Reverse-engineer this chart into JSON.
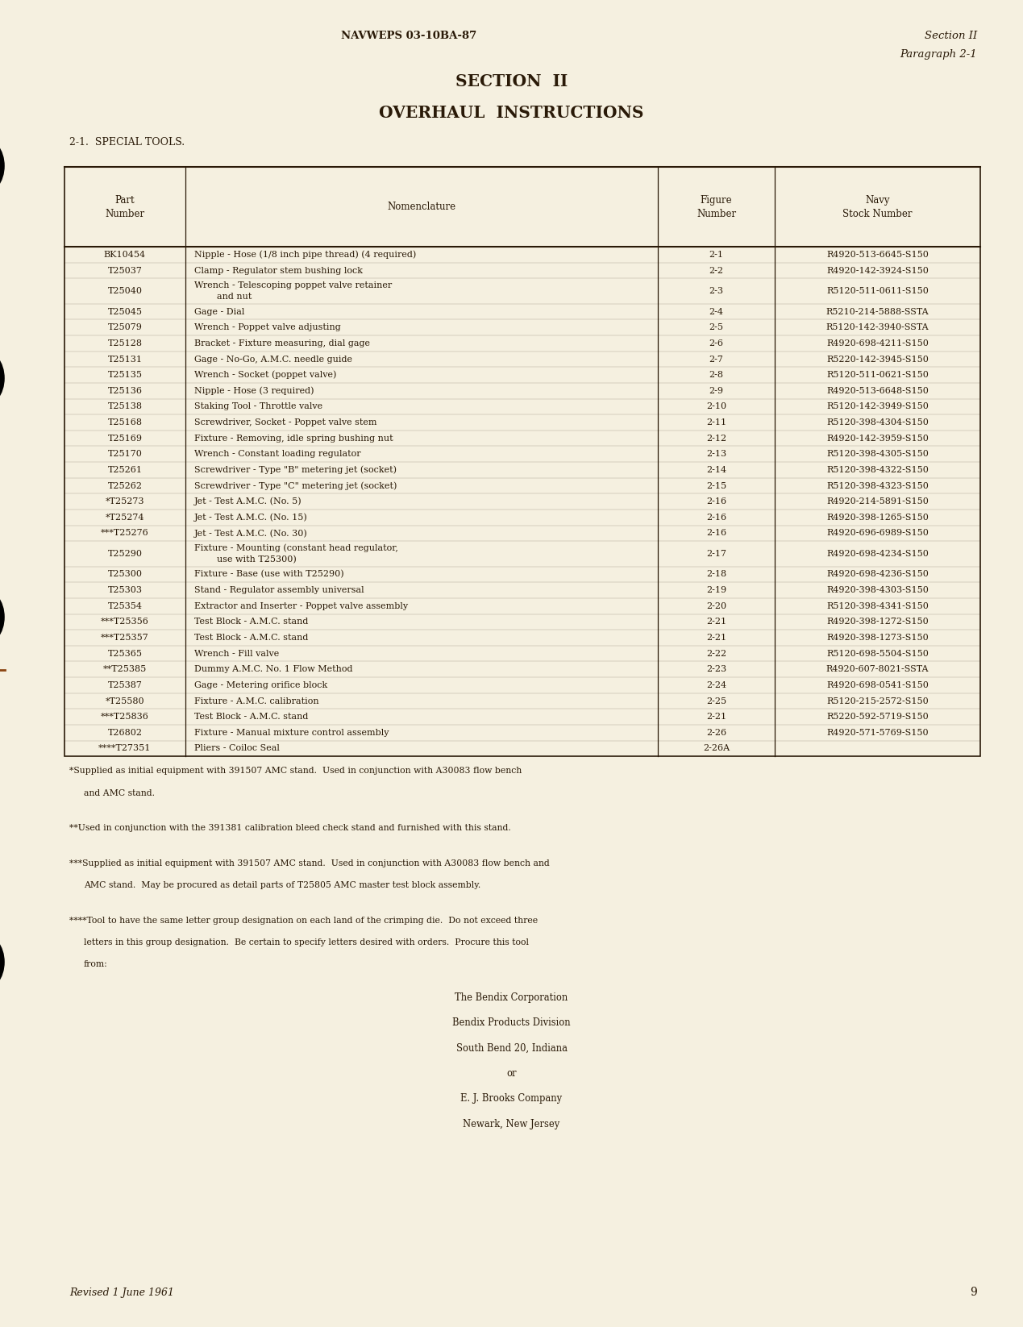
{
  "bg_color": "#f5f0e0",
  "text_color": "#2a1a08",
  "page_num": "9",
  "header_left": "NAVWEPS 03-10BA-87",
  "header_right_line1": "Section II",
  "header_right_line2": "Paragraph 2-1",
  "title_line1": "SECTION  II",
  "title_line2": "OVERHAUL  INSTRUCTIONS",
  "section_label": "2-1.  SPECIAL TOOLS.",
  "revised": "Revised 1 June 1961",
  "table_rows": [
    [
      "BK10454",
      "Nipple - Hose (1/8 inch pipe thread) (4 required)",
      "2-1",
      "R4920-513-6645-S150"
    ],
    [
      "T25037",
      "Clamp - Regulator stem bushing lock",
      "2-2",
      "R4920-142-3924-S150"
    ],
    [
      "T25040",
      "Wrench - Telescoping poppet valve retainer\nand nut",
      "2-3",
      "R5120-511-0611-S150"
    ],
    [
      "T25045",
      "Gage - Dial",
      "2-4",
      "R5210-214-5888-SSTA"
    ],
    [
      "T25079",
      "Wrench - Poppet valve adjusting",
      "2-5",
      "R5120-142-3940-SSTA"
    ],
    [
      "T25128",
      "Bracket - Fixture measuring, dial gage",
      "2-6",
      "R4920-698-4211-S150"
    ],
    [
      "T25131",
      "Gage - No-Go, A.M.C. needle guide",
      "2-7",
      "R5220-142-3945-S150"
    ],
    [
      "T25135",
      "Wrench - Socket (poppet valve)",
      "2-8",
      "R5120-511-0621-S150"
    ],
    [
      "T25136",
      "Nipple - Hose (3 required)",
      "2-9",
      "R4920-513-6648-S150"
    ],
    [
      "T25138",
      "Staking Tool - Throttle valve",
      "2-10",
      "R5120-142-3949-S150"
    ],
    [
      "T25168",
      "Screwdriver, Socket - Poppet valve stem",
      "2-11",
      "R5120-398-4304-S150"
    ],
    [
      "T25169",
      "Fixture - Removing, idle spring bushing nut",
      "2-12",
      "R4920-142-3959-S150"
    ],
    [
      "T25170",
      "Wrench - Constant loading regulator",
      "2-13",
      "R5120-398-4305-S150"
    ],
    [
      "T25261",
      "Screwdriver - Type \"B\" metering jet (socket)",
      "2-14",
      "R5120-398-4322-S150"
    ],
    [
      "T25262",
      "Screwdriver - Type \"C\" metering jet (socket)",
      "2-15",
      "R5120-398-4323-S150"
    ],
    [
      "*T25273",
      "Jet - Test A.M.C. (No. 5)",
      "2-16",
      "R4920-214-5891-S150"
    ],
    [
      "*T25274",
      "Jet - Test A.M.C. (No. 15)",
      "2-16",
      "R4920-398-1265-S150"
    ],
    [
      "***T25276",
      "Jet - Test A.M.C. (No. 30)",
      "2-16",
      "R4920-696-6989-S150"
    ],
    [
      "T25290",
      "Fixture - Mounting (constant head regulator,\nuse with T25300)",
      "2-17",
      "R4920-698-4234-S150"
    ],
    [
      "T25300",
      "Fixture - Base (use with T25290)",
      "2-18",
      "R4920-698-4236-S150"
    ],
    [
      "T25303",
      "Stand - Regulator assembly universal",
      "2-19",
      "R4920-398-4303-S150"
    ],
    [
      "T25354",
      "Extractor and Inserter - Poppet valve assembly",
      "2-20",
      "R5120-398-4341-S150"
    ],
    [
      "***T25356",
      "Test Block - A.M.C. stand",
      "2-21",
      "R4920-398-1272-S150"
    ],
    [
      "***T25357",
      "Test Block - A.M.C. stand",
      "2-21",
      "R4920-398-1273-S150"
    ],
    [
      "T25365",
      "Wrench - Fill valve",
      "2-22",
      "R5120-698-5504-S150"
    ],
    [
      "**T25385",
      "Dummy A.M.C. No. 1 Flow Method",
      "2-23",
      "R4920-607-8021-SSTA"
    ],
    [
      "T25387",
      "Gage - Metering orifice block",
      "2-24",
      "R4920-698-0541-S150"
    ],
    [
      "*T25580",
      "Fixture - A.M.C. calibration",
      "2-25",
      "R5120-215-2572-S150"
    ],
    [
      "***T25836",
      "Test Block - A.M.C. stand",
      "2-21",
      "R5220-592-5719-S150"
    ],
    [
      "T26802",
      "Fixture - Manual mixture control assembly",
      "2-26",
      "R4920-571-5769-S150"
    ],
    [
      "****T27351",
      "Pliers - Coiloc Seal",
      "2-26A",
      ""
    ]
  ],
  "footnote_lines": [
    "*Supplied as initial equipment with 391507 AMC stand.  Used in conjunction with A30083 flow bench",
    "and AMC stand.",
    "",
    "**Used in conjunction with the 391381 calibration bleed check stand and furnished with this stand.",
    "",
    "***Supplied as initial equipment with 391507 AMC stand.  Used in conjunction with A30083 flow bench and",
    "AMC stand.  May be procured as detail parts of T25805 AMC master test block assembly.",
    "",
    "****Tool to have the same letter group designation on each land of the crimping die.  Do not exceed three",
    "letters in this group designation.  Be certain to specify letters desired with orders.  Procure this tool",
    "from:"
  ],
  "footnote_indents": [
    false,
    true,
    false,
    false,
    false,
    false,
    true,
    false,
    false,
    true,
    true
  ],
  "company_lines": [
    "The Bendix Corporation",
    "Bendix Products Division",
    "South Bend 20, Indiana",
    "or",
    "E. J. Brooks Company",
    "Newark, New Jersey"
  ],
  "double_row_indices": [
    2,
    18
  ]
}
